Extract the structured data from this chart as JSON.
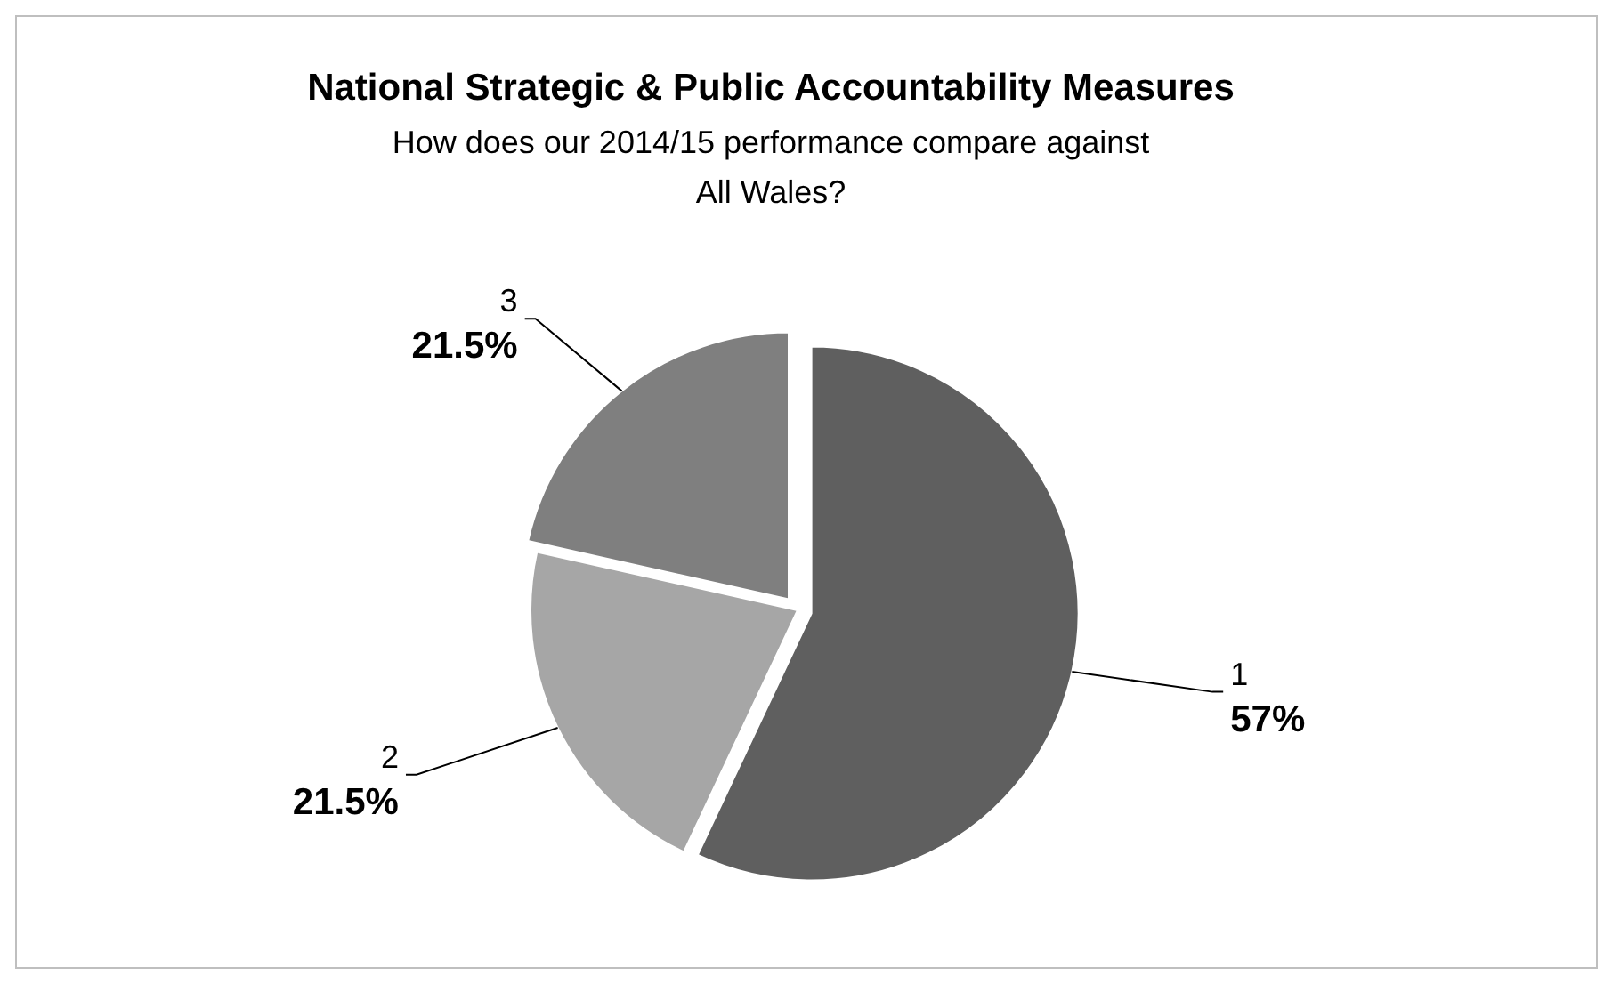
{
  "chart_data": {
    "type": "pie",
    "title": "National Strategic & Public Accountability Measures",
    "subtitle": "How does our 2014/15 performance compare against All Wales?",
    "categories": [
      "1",
      "2",
      "3"
    ],
    "values": [
      57,
      21.5,
      21.5
    ],
    "colors": [
      "#5f5f5f",
      "#a6a6a6",
      "#7f7f7f"
    ],
    "value_labels": [
      "57%",
      "21.5%",
      "21.5%"
    ]
  }
}
